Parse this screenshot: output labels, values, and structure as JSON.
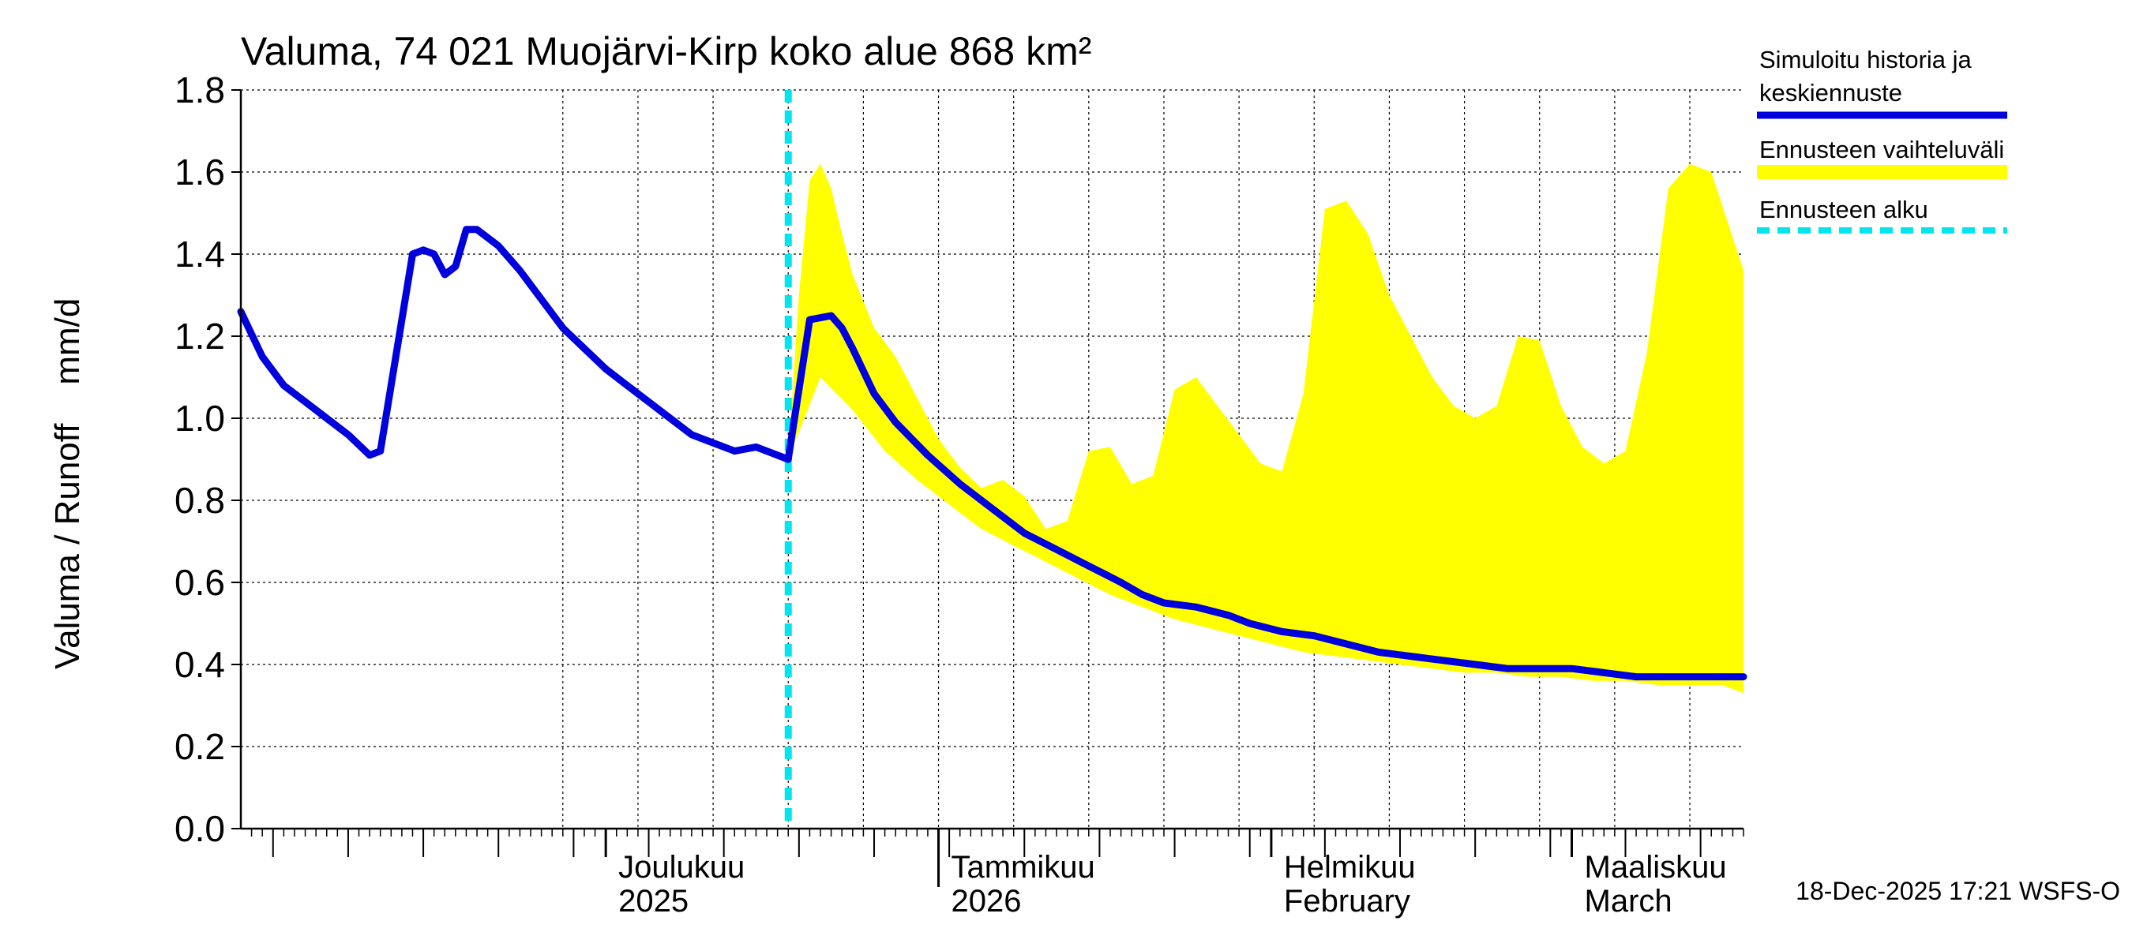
{
  "chart_data": {
    "type": "area",
    "title": "Valuma, 74 021 Muojärvi-Kirp koko alue 868 km²",
    "ylabel": "Valuma / Runoff    mm/d",
    "ylim": [
      0,
      1.8
    ],
    "yticks": [
      "0.0",
      "0.2",
      "0.4",
      "0.6",
      "0.8",
      "1.0",
      "1.2",
      "1.4",
      "1.6",
      "1.8"
    ],
    "x_unit": "days since 2025-11-01",
    "xlim": [
      -4,
      136
    ],
    "month_labels": [
      {
        "line1": "Joulukuu",
        "line2": "2025",
        "day": 30
      },
      {
        "line1": "Tammikuu",
        "line2": "2026",
        "day": 61
      },
      {
        "line1": "Helmikuu",
        "line2": "February",
        "day": 92
      },
      {
        "line1": "Maaliskuu",
        "line2": "March",
        "day": 120
      }
    ],
    "forecast_start_day": 47,
    "legend": [
      {
        "label_line1": "Simuloitu historia ja",
        "label_line2": "keskiennuste",
        "color": "#0000dd",
        "style": "line"
      },
      {
        "label_line1": "Ennusteen vaihteluväli",
        "label_line2": "",
        "color": "#ffff00",
        "style": "band"
      },
      {
        "label_line1": "Ennusteen alku",
        "label_line2": "",
        "color": "#00e5ee",
        "style": "dashed"
      }
    ],
    "footer": "18-Dec-2025 17:21 WSFS-O",
    "colors": {
      "history": "#0000dd",
      "band": "#ffff00",
      "forecast_start": "#00e5ee",
      "grid": "#000000"
    },
    "series_history": {
      "name": "Simuloitu historia ja keskiennuste",
      "x": [
        -4,
        -2,
        0,
        2,
        4,
        6,
        8,
        9,
        10,
        11,
        12,
        13,
        14,
        15,
        16,
        17,
        18,
        20,
        22,
        24,
        26,
        28,
        30,
        32,
        34,
        36,
        38,
        40,
        42,
        44,
        47
      ],
      "y": [
        1.26,
        1.15,
        1.08,
        1.04,
        1.0,
        0.96,
        0.91,
        0.92,
        1.08,
        1.24,
        1.4,
        1.41,
        1.4,
        1.35,
        1.37,
        1.46,
        1.46,
        1.42,
        1.36,
        1.29,
        1.22,
        1.17,
        1.12,
        1.08,
        1.04,
        1.0,
        0.96,
        0.94,
        0.92,
        0.93,
        0.9
      ]
    },
    "series_forecast": {
      "name": "keskiennuste",
      "x": [
        47,
        49,
        51,
        52,
        53,
        55,
        57,
        60,
        63,
        66,
        69,
        72,
        75,
        78,
        80,
        82,
        85,
        88,
        90,
        93,
        96,
        99,
        102,
        105,
        108,
        111,
        114,
        117,
        120,
        123,
        126,
        129,
        132,
        135,
        136
      ],
      "y": [
        0.9,
        1.24,
        1.25,
        1.22,
        1.17,
        1.06,
        0.99,
        0.91,
        0.84,
        0.78,
        0.72,
        0.68,
        0.64,
        0.6,
        0.57,
        0.55,
        0.54,
        0.52,
        0.5,
        0.48,
        0.47,
        0.45,
        0.43,
        0.42,
        0.41,
        0.4,
        0.39,
        0.39,
        0.39,
        0.38,
        0.37,
        0.37,
        0.37,
        0.37,
        0.37
      ]
    },
    "band_upper": {
      "x": [
        47,
        48,
        49,
        50,
        51,
        52,
        53,
        55,
        57,
        59,
        61,
        63,
        65,
        67,
        69,
        71,
        73,
        75,
        77,
        79,
        81,
        83,
        85,
        87,
        89,
        91,
        93,
        95,
        97,
        99,
        101,
        103,
        105,
        107,
        109,
        111,
        113,
        115,
        117,
        119,
        121,
        123,
        125,
        127,
        129,
        131,
        133,
        136
      ],
      "y": [
        0.9,
        1.3,
        1.58,
        1.62,
        1.56,
        1.45,
        1.35,
        1.22,
        1.15,
        1.05,
        0.95,
        0.88,
        0.83,
        0.85,
        0.81,
        0.73,
        0.75,
        0.92,
        0.93,
        0.84,
        0.86,
        1.07,
        1.1,
        1.03,
        0.96,
        0.89,
        0.87,
        1.06,
        1.51,
        1.53,
        1.45,
        1.3,
        1.2,
        1.1,
        1.03,
        1.0,
        1.03,
        1.2,
        1.19,
        1.03,
        0.93,
        0.89,
        0.92,
        1.16,
        1.56,
        1.62,
        1.6,
        1.36
      ]
    },
    "band_lower": {
      "x": [
        47,
        50,
        53,
        56,
        59,
        62,
        65,
        68,
        71,
        74,
        77,
        80,
        83,
        86,
        89,
        92,
        95,
        98,
        101,
        104,
        107,
        110,
        113,
        116,
        119,
        122,
        125,
        128,
        131,
        134,
        136
      ],
      "y": [
        0.9,
        1.1,
        1.02,
        0.92,
        0.85,
        0.79,
        0.73,
        0.69,
        0.65,
        0.61,
        0.57,
        0.54,
        0.51,
        0.49,
        0.47,
        0.45,
        0.43,
        0.42,
        0.41,
        0.4,
        0.39,
        0.38,
        0.38,
        0.37,
        0.37,
        0.36,
        0.36,
        0.35,
        0.35,
        0.35,
        0.33
      ]
    }
  }
}
